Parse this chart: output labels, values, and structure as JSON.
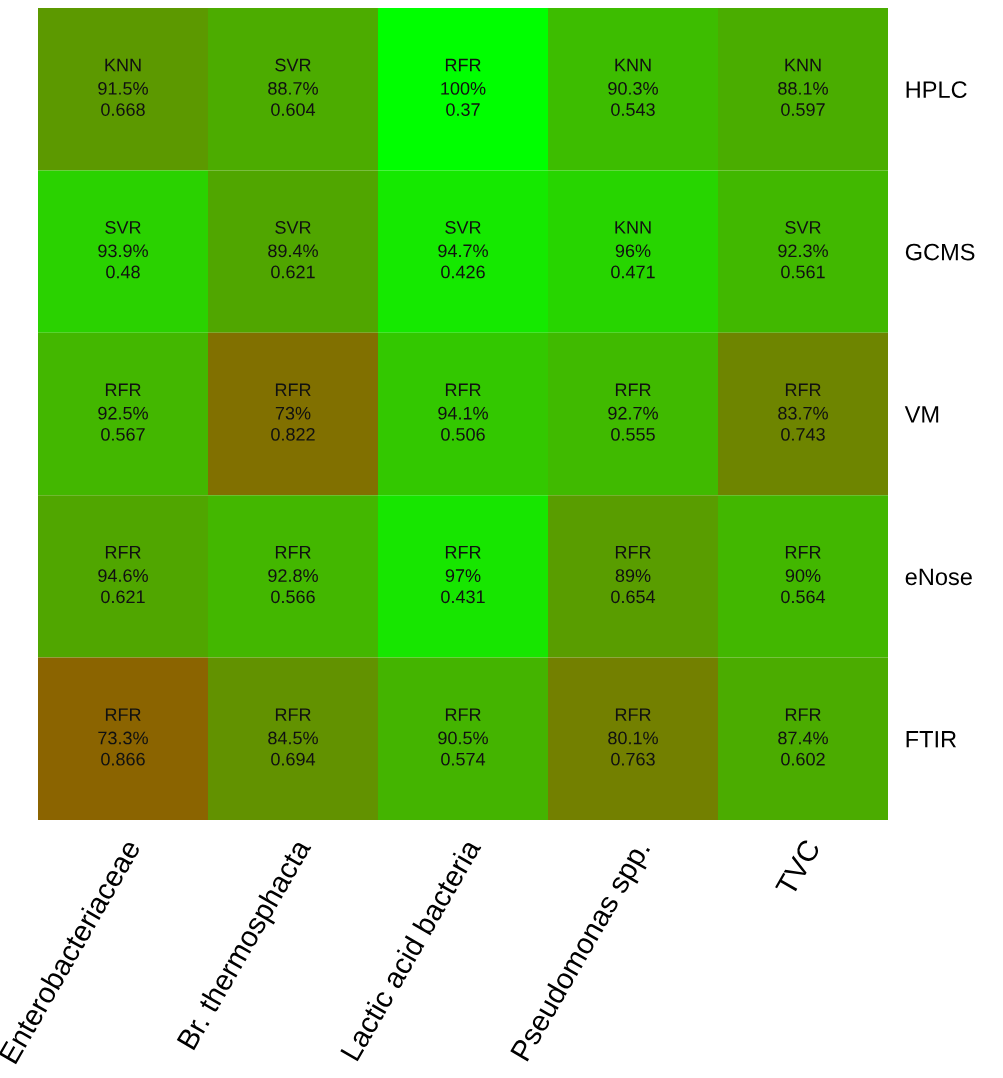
{
  "chart_data": {
    "type": "heatmap",
    "categories": [
      "Enterobacteriaceae",
      "Br. thermosphacta",
      "Lactic acid bacteria",
      "Pseudomonas spp.",
      "TVC"
    ],
    "y_categories": [
      "HPLC",
      "GCMS",
      "VM",
      "eNose",
      "FTIR"
    ],
    "data_labels": true,
    "cells": [
      [
        0.668,
        0.604,
        0.37,
        0.543,
        0.597
      ],
      [
        0.48,
        0.621,
        0.426,
        0.471,
        0.561
      ],
      [
        0.567,
        0.822,
        0.506,
        0.555,
        0.743
      ],
      [
        0.621,
        0.566,
        0.431,
        0.654,
        0.564
      ],
      [
        0.866,
        0.694,
        0.574,
        0.763,
        0.602
      ]
    ],
    "annotations": [
      "KNN\n91.5%",
      "SVR\n88.7%",
      "RFR\n100%",
      "KNN\n90.3%",
      "KNN\n88.1%",
      "SVR\n93.9%",
      "SVR\n89.4%",
      "SVR\n94.7%",
      "KNN\n96%",
      "SVR\n92.3%",
      "RFR\n92.5%",
      "RFR\n73%",
      "RFR\n94.1%",
      "RFR\n92.7%",
      "RFR\n83.7%",
      "RFR\n94.6%",
      "RFR\n92.8%",
      "RFR\n97%",
      "RFR\n89%",
      "RFR\n90%",
      "RFR\n73.3%",
      "RFR\n84.5%",
      "RFR\n90.5%",
      "RFR\n80.1%",
      "RFR\n87.4%"
    ]
  }
}
